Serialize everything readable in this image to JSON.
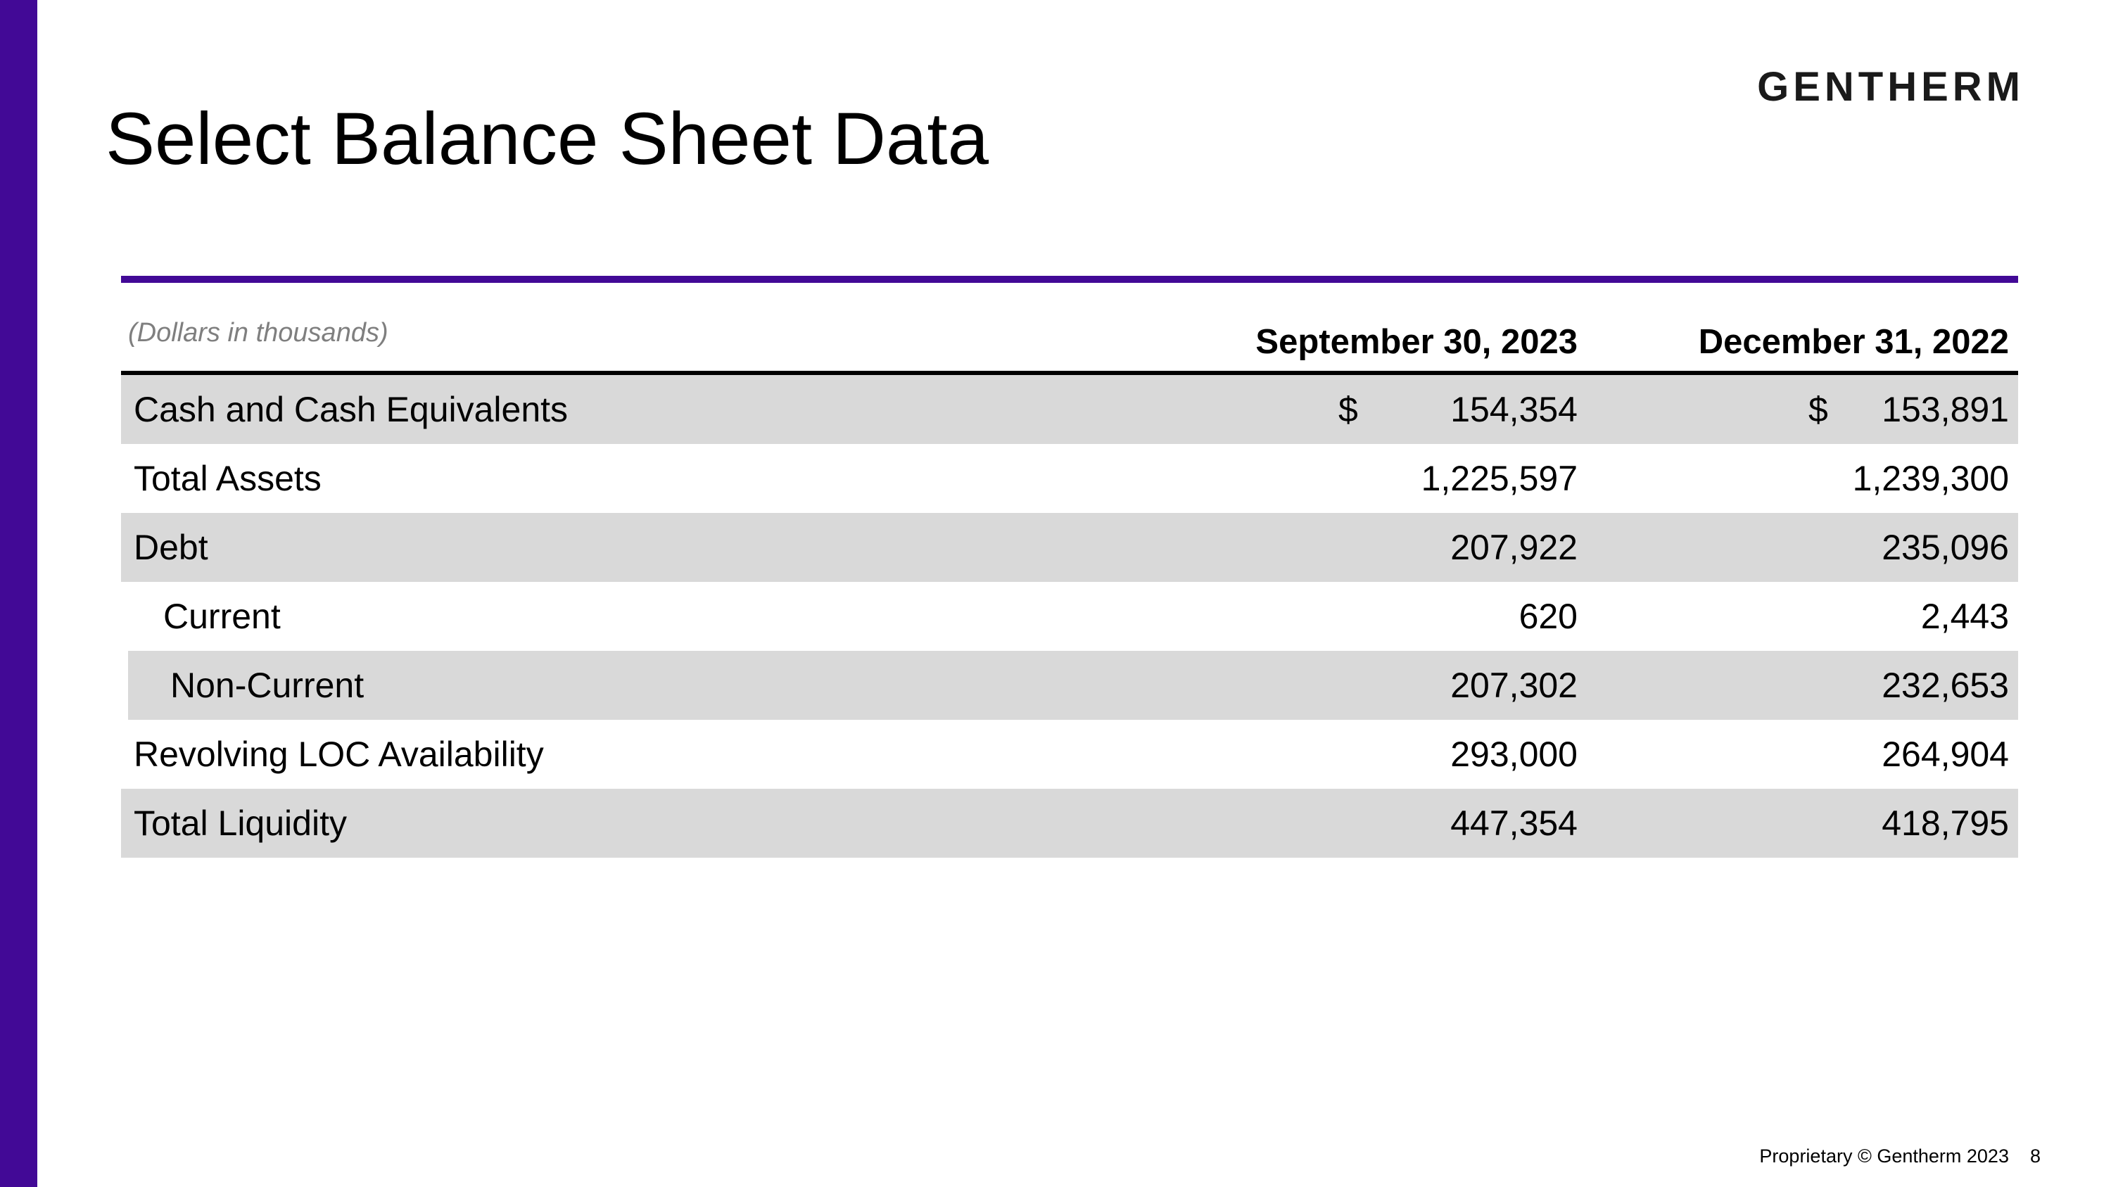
{
  "slide": {
    "logo": "GENTHERM",
    "title": "Select Balance Sheet Data",
    "footer": {
      "text": "Proprietary © Gentherm 2023",
      "page": "8"
    }
  },
  "table": {
    "units_note": "(Dollars in thousands)",
    "columns": [
      "September 30, 2023",
      "December 31, 2022"
    ],
    "rows": [
      {
        "label": "Cash and Cash Equivalents",
        "currency": "$",
        "values": [
          "154,354",
          "153,891"
        ],
        "indent": false,
        "shaded": true
      },
      {
        "label": "Total Assets",
        "currency": "",
        "values": [
          "1,225,597",
          "1,239,300"
        ],
        "indent": false,
        "shaded": false
      },
      {
        "label": "Debt",
        "currency": "",
        "values": [
          "207,922",
          "235,096"
        ],
        "indent": false,
        "shaded": true
      },
      {
        "label": "Current",
        "currency": "",
        "values": [
          "620",
          "2,443"
        ],
        "indent": true,
        "shaded": false
      },
      {
        "label": "Non-Current",
        "currency": "",
        "values": [
          "207,302",
          "232,653"
        ],
        "indent": true,
        "shaded": true
      },
      {
        "label": "Revolving LOC Availability",
        "currency": "",
        "values": [
          "293,000",
          "264,904"
        ],
        "indent": false,
        "shaded": false
      },
      {
        "label": "Total Liquidity",
        "currency": "",
        "values": [
          "447,354",
          "418,795"
        ],
        "indent": false,
        "shaded": true
      }
    ]
  },
  "colors": {
    "accent_purple": "#420996",
    "row_shade": "#d9d9d9",
    "note_gray": "#7f7f7f",
    "text_black": "#000000"
  }
}
